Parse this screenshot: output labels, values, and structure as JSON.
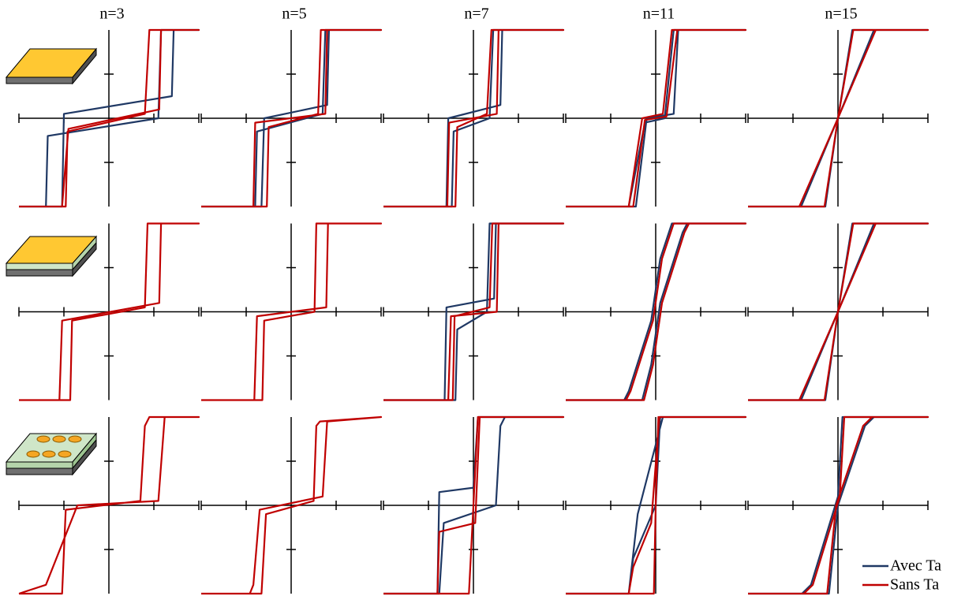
{
  "chart_data": [
    {
      "type": "line",
      "title": "n=3",
      "xlim": [
        -1,
        1
      ],
      "ylim": [
        -1,
        1
      ],
      "xticks": [
        -1,
        -0.5,
        0.5,
        1
      ],
      "yticks": [
        -0.5,
        0.5
      ],
      "series": [
        {
          "color": "#1f3864",
          "x": [
            -1,
            -0.7,
            -0.68,
            0.55,
            0.58,
            1,
            0.72,
            0.7,
            -0.5,
            -0.52,
            -1
          ],
          "y": [
            -1,
            -1,
            -0.2,
            0.0,
            1,
            1,
            1,
            0.25,
            0.05,
            -1,
            -1
          ]
        },
        {
          "color": "#c00000",
          "x": [
            -1,
            -0.48,
            -0.46,
            0.4,
            0.45,
            1,
            0.58,
            0.56,
            -0.45,
            -0.52,
            -1
          ],
          "y": [
            -1,
            -1,
            -0.15,
            0.05,
            1,
            1,
            1,
            0.1,
            -0.12,
            -1,
            -1
          ]
        }
      ]
    },
    {
      "type": "line",
      "title": "n=5",
      "xlim": [
        -1,
        1
      ],
      "ylim": [
        -1,
        1
      ],
      "xticks": [
        -1,
        -0.5,
        0.5,
        1
      ],
      "yticks": [
        -0.5,
        0.5
      ],
      "series": [
        {
          "color": "#1f3864",
          "x": [
            -1,
            -0.4,
            -0.38,
            0.35,
            0.38,
            1,
            0.42,
            0.4,
            -0.3,
            -0.33,
            -1
          ],
          "y": [
            -1,
            -1,
            -0.15,
            0.05,
            1,
            1,
            1,
            0.15,
            0.0,
            -1,
            -1
          ]
        },
        {
          "color": "#c00000",
          "x": [
            -1,
            -0.27,
            -0.25,
            0.3,
            0.33,
            1,
            0.4,
            0.38,
            -0.4,
            -0.42,
            -1
          ],
          "y": [
            -1,
            -1,
            -0.1,
            0.05,
            1,
            1,
            1,
            0.05,
            -0.05,
            -1,
            -1
          ]
        }
      ]
    },
    {
      "type": "line",
      "title": "n=7",
      "xlim": [
        -1,
        1
      ],
      "ylim": [
        -1,
        1
      ],
      "xticks": [
        -1,
        -0.5,
        0.5,
        1
      ],
      "yticks": [
        -0.5,
        0.5
      ],
      "series": [
        {
          "color": "#1f3864",
          "x": [
            -1,
            -0.24,
            -0.22,
            0.18,
            0.22,
            1,
            0.32,
            0.3,
            -0.28,
            -0.3,
            -1
          ],
          "y": [
            -1,
            -1,
            -0.15,
            0.0,
            1,
            1,
            1,
            0.15,
            0.0,
            -1,
            -1
          ]
        },
        {
          "color": "#c00000",
          "x": [
            -1,
            -0.2,
            -0.18,
            0.15,
            0.2,
            1,
            0.28,
            0.26,
            -0.27,
            -0.29,
            -1
          ],
          "y": [
            -1,
            -1,
            -0.1,
            0.05,
            1,
            1,
            1,
            0.05,
            -0.05,
            -1,
            -1
          ]
        }
      ]
    },
    {
      "type": "line",
      "title": "n=11",
      "xlim": [
        -1,
        1
      ],
      "ylim": [
        -1,
        1
      ],
      "xticks": [
        -1,
        -0.5,
        0.5,
        1
      ],
      "yticks": [
        -0.5,
        0.5
      ],
      "series": [
        {
          "color": "#1f3864",
          "x": [
            -1,
            -0.3,
            -0.12,
            0.1,
            0.2,
            1,
            0.25,
            0.2,
            -0.1,
            -0.22,
            -1
          ],
          "y": [
            -1,
            -1,
            -0.05,
            0.0,
            1,
            1,
            1,
            0.05,
            0.0,
            -1,
            -1
          ]
        },
        {
          "color": "#c00000",
          "x": [
            -1,
            -0.3,
            -0.15,
            0.08,
            0.18,
            1,
            0.24,
            0.12,
            -0.12,
            -0.25,
            -1
          ],
          "y": [
            -1,
            -1,
            0.0,
            0.05,
            1,
            1,
            1,
            0.02,
            -0.02,
            -1,
            -1
          ]
        }
      ]
    },
    {
      "type": "line",
      "title": "n=15",
      "xlim": [
        -1,
        1
      ],
      "ylim": [
        -1,
        1
      ],
      "xticks": [
        -1,
        -0.5,
        0.5,
        1
      ],
      "yticks": [
        -0.5,
        0.5
      ],
      "series": [
        {
          "color": "#1f3864",
          "x": [
            -1,
            -0.14,
            0,
            0.4,
            1,
            0.16,
            0,
            -0.41,
            -1
          ],
          "y": [
            -1,
            -1,
            0,
            1,
            1,
            1,
            0,
            -1,
            -1
          ]
        },
        {
          "color": "#c00000",
          "x": [
            -1,
            -0.15,
            0,
            0.42,
            1,
            0.17,
            0,
            -0.43,
            -1
          ],
          "y": [
            -1,
            -1,
            0,
            1,
            1,
            1,
            0,
            -1,
            -1
          ]
        }
      ]
    },
    {
      "type": "line",
      "xlim": [
        -1,
        1
      ],
      "ylim": [
        -1,
        1
      ],
      "xticks": [
        -1,
        -0.5,
        0.5,
        1
      ],
      "yticks": [
        -0.5,
        0.5
      ],
      "series": [
        {
          "color": "#c00000",
          "x": [
            -1,
            -0.43,
            -0.41,
            0.4,
            0.43,
            1,
            0.58,
            0.56,
            -0.52,
            -0.55,
            -1
          ],
          "y": [
            -1,
            -1,
            -0.1,
            0.05,
            1,
            1,
            1,
            0.1,
            -0.1,
            -1,
            -1
          ]
        }
      ]
    },
    {
      "type": "line",
      "xlim": [
        -1,
        1
      ],
      "ylim": [
        -1,
        1
      ],
      "xticks": [
        -1,
        -0.5,
        0.5,
        1
      ],
      "yticks": [
        -0.5,
        0.5
      ],
      "series": [
        {
          "color": "#c00000",
          "x": [
            -1,
            -0.32,
            -0.3,
            0.26,
            0.28,
            1,
            0.41,
            0.39,
            -0.38,
            -0.41,
            -1
          ],
          "y": [
            -1,
            -1,
            -0.1,
            0.0,
            1,
            1,
            1,
            0.05,
            -0.05,
            -1,
            -1
          ]
        }
      ]
    },
    {
      "type": "line",
      "xlim": [
        -1,
        1
      ],
      "ylim": [
        -1,
        1
      ],
      "xticks": [
        -1,
        -0.5,
        0.5,
        1
      ],
      "yticks": [
        -0.5,
        0.5
      ],
      "series": [
        {
          "color": "#1f3864",
          "x": [
            -1,
            -0.2,
            -0.18,
            0.15,
            0.18,
            1,
            0.25,
            0.23,
            -0.3,
            -0.32,
            -1
          ],
          "y": [
            -1,
            -1,
            -0.2,
            0.0,
            1,
            1,
            1,
            0.15,
            0.05,
            -1,
            -1
          ]
        },
        {
          "color": "#c00000",
          "x": [
            -1,
            -0.23,
            -0.21,
            0.18,
            0.21,
            1,
            0.28,
            0.26,
            -0.25,
            -0.28,
            -1
          ],
          "y": [
            -1,
            -1,
            -0.05,
            0.05,
            1,
            1,
            1,
            0.0,
            -0.05,
            -1,
            -1
          ]
        }
      ]
    },
    {
      "type": "line",
      "xlim": [
        -1,
        1
      ],
      "ylim": [
        -1,
        1
      ],
      "xticks": [
        -1,
        -0.5,
        0.5,
        1
      ],
      "yticks": [
        -0.5,
        0.5
      ],
      "series": [
        {
          "color": "#1f3864",
          "x": [
            -1,
            -0.15,
            -0.05,
            0.05,
            0.3,
            0.35,
            1,
            0.18,
            0.05,
            -0.05,
            -0.3,
            -0.35,
            -1
          ],
          "y": [
            -1,
            -1,
            -0.6,
            0.1,
            0.9,
            1,
            1,
            1,
            0.6,
            -0.1,
            -0.9,
            -1,
            -1
          ]
        },
        {
          "color": "#c00000",
          "x": [
            -1,
            -0.13,
            -0.03,
            0.07,
            0.32,
            0.37,
            1,
            0.2,
            0.07,
            -0.03,
            -0.28,
            -0.33,
            -1
          ],
          "y": [
            -1,
            -1,
            -0.6,
            0.1,
            0.9,
            1,
            1,
            1,
            0.6,
            -0.1,
            -0.9,
            -1,
            -1
          ]
        }
      ]
    },
    {
      "type": "line",
      "xlim": [
        -1,
        1
      ],
      "ylim": [
        -1,
        1
      ],
      "xticks": [
        -1,
        -0.5,
        0.5,
        1
      ],
      "yticks": [
        -0.5,
        0.5
      ],
      "series": [
        {
          "color": "#1f3864",
          "x": [
            -1,
            -0.14,
            0,
            0.4,
            1,
            0.16,
            0,
            -0.41,
            -1
          ],
          "y": [
            -1,
            -1,
            0,
            1,
            1,
            1,
            0,
            -1,
            -1
          ]
        },
        {
          "color": "#c00000",
          "x": [
            -1,
            -0.15,
            0,
            0.42,
            1,
            0.17,
            0,
            -0.43,
            -1
          ],
          "y": [
            -1,
            -1,
            0,
            1,
            1,
            1,
            0,
            -1,
            -1
          ]
        }
      ]
    },
    {
      "type": "line",
      "xlim": [
        -1,
        1
      ],
      "ylim": [
        -1,
        1
      ],
      "xticks": [
        -1,
        -0.5,
        0.5,
        1
      ],
      "yticks": [
        -0.5,
        0.5
      ],
      "series": [
        {
          "color": "#c00000",
          "x": [
            -1,
            -0.52,
            -0.48,
            0.35,
            0.4,
            0.45,
            1,
            0.62,
            0.55,
            -0.35,
            -0.7,
            -1
          ],
          "y": [
            -1,
            -1,
            -0.05,
            0.05,
            0.9,
            1,
            1,
            1,
            0.05,
            0.0,
            -0.9,
            -1
          ]
        }
      ]
    },
    {
      "type": "line",
      "xlim": [
        -1,
        1
      ],
      "ylim": [
        -1,
        1
      ],
      "xticks": [
        -1,
        -0.5,
        0.5,
        1
      ],
      "yticks": [
        -0.5,
        0.5
      ],
      "series": [
        {
          "color": "#c00000",
          "x": [
            -1,
            -0.33,
            -0.28,
            0.25,
            0.28,
            0.32,
            1,
            0.4,
            0.35,
            -0.35,
            -0.42,
            -0.46,
            -1
          ],
          "y": [
            -1,
            -1,
            -0.1,
            0.05,
            0.9,
            0.95,
            1,
            0.95,
            0.1,
            -0.05,
            -0.9,
            -1,
            -1
          ]
        }
      ]
    },
    {
      "type": "line",
      "xlim": [
        -1,
        1
      ],
      "ylim": [
        -1,
        1
      ],
      "xticks": [
        -1,
        -0.5,
        0.5,
        1
      ],
      "yticks": [
        -0.5,
        0.5
      ],
      "series": [
        {
          "color": "#1f3864",
          "x": [
            -1,
            -0.38,
            -0.33,
            0.25,
            0.3,
            0.35,
            1,
            0.05,
            0.0,
            -0.38,
            -0.4,
            -1
          ],
          "y": [
            -1,
            -1,
            -0.2,
            0.0,
            0.9,
            1,
            1,
            1,
            0.2,
            0.15,
            -1,
            -1
          ]
        },
        {
          "color": "#c00000",
          "x": [
            -1,
            -0.05,
            0.0,
            0.05,
            1,
            0.07,
            0.02,
            -0.38,
            -0.4,
            -1
          ],
          "y": [
            -1,
            -1,
            0.0,
            1,
            1,
            1,
            -0.2,
            -0.3,
            -1,
            -1
          ]
        }
      ]
    },
    {
      "type": "line",
      "xlim": [
        -1,
        1
      ],
      "ylim": [
        -1,
        1
      ],
      "xticks": [
        -1,
        -0.5,
        0.5,
        1
      ],
      "yticks": [
        -0.5,
        0.5
      ],
      "series": [
        {
          "color": "#1f3864",
          "x": [
            -1,
            -0.3,
            -0.25,
            0.0,
            0.05,
            1,
            0.08,
            -0.2,
            -0.3,
            -1
          ],
          "y": [
            -1,
            -1,
            -0.6,
            0.0,
            1,
            1,
            1,
            -0.1,
            -1,
            -1
          ]
        },
        {
          "color": "#c00000",
          "x": [
            -1,
            -0.02,
            0.0,
            0.03,
            1,
            0.04,
            -0.05,
            -0.25,
            -0.3,
            -1
          ],
          "y": [
            -1,
            -1,
            0.0,
            1,
            1,
            1,
            -0.2,
            -0.7,
            -1,
            -1
          ]
        }
      ]
    },
    {
      "type": "line",
      "xlim": [
        -1,
        1
      ],
      "ylim": [
        -1,
        1
      ],
      "xticks": [
        -1,
        -0.5,
        0.5,
        1
      ],
      "yticks": [
        -0.5,
        0.5
      ],
      "legend": "lower right",
      "series": [
        {
          "name": "Avec Ta",
          "color": "#1f3864",
          "x": [
            -1,
            -0.1,
            0.0,
            0.3,
            0.4,
            1,
            0.05,
            0.0,
            -0.3,
            -0.4,
            -1
          ],
          "y": [
            -1,
            -1,
            0.0,
            0.9,
            1,
            1,
            1,
            0.1,
            -0.9,
            -1,
            -1
          ]
        },
        {
          "name": "Sans Ta",
          "color": "#c00000",
          "x": [
            -1,
            -0.12,
            -0.02,
            0.28,
            0.38,
            1,
            0.07,
            0.02,
            -0.28,
            -0.38,
            -1
          ],
          "y": [
            -1,
            -1,
            0.0,
            0.9,
            1,
            1,
            1,
            0.1,
            -0.9,
            -1,
            -1
          ]
        }
      ]
    }
  ]
}
